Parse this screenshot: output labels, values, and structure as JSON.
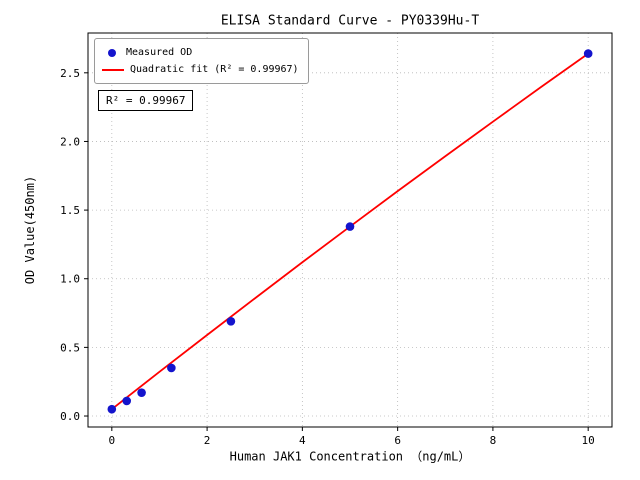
{
  "chart_data": {
    "type": "scatter",
    "title": "ELISA Standard Curve - PY0339Hu-T",
    "xlabel": "Human JAK1 Concentration （ng/mL）",
    "ylabel": "OD Value(450nm)",
    "xlim": [
      -0.5,
      10.5
    ],
    "ylim": [
      -0.08,
      2.79
    ],
    "xticks": [
      0,
      2,
      4,
      6,
      8,
      10
    ],
    "xtick_labels": [
      "0",
      "2",
      "4",
      "6",
      "8",
      "10"
    ],
    "yticks": [
      0.0,
      0.5,
      1.0,
      1.5,
      2.0,
      2.5
    ],
    "ytick_labels": [
      "0.0",
      "0.5",
      "1.0",
      "1.5",
      "2.0",
      "2.5"
    ],
    "grid": true,
    "legend_position": "upper left",
    "annotation": "R² = 0.99967",
    "series": [
      {
        "name": "Measured OD",
        "type": "scatter",
        "color": "#1414cd",
        "x": [
          0,
          0.313,
          0.625,
          1.25,
          2.5,
          5,
          10
        ],
        "y": [
          0.05,
          0.11,
          0.17,
          0.35,
          0.69,
          1.38,
          2.64
        ]
      },
      {
        "name": "Quadratic fit (R² = 0.99967)",
        "type": "line",
        "color": "#ff0000",
        "x": [
          0,
          1,
          2,
          3,
          4,
          5,
          6,
          7,
          8,
          9,
          10
        ],
        "y": [
          0.05,
          0.322,
          0.59,
          0.856,
          1.12,
          1.38,
          1.638,
          1.892,
          2.144,
          2.394,
          2.64
        ]
      }
    ]
  }
}
